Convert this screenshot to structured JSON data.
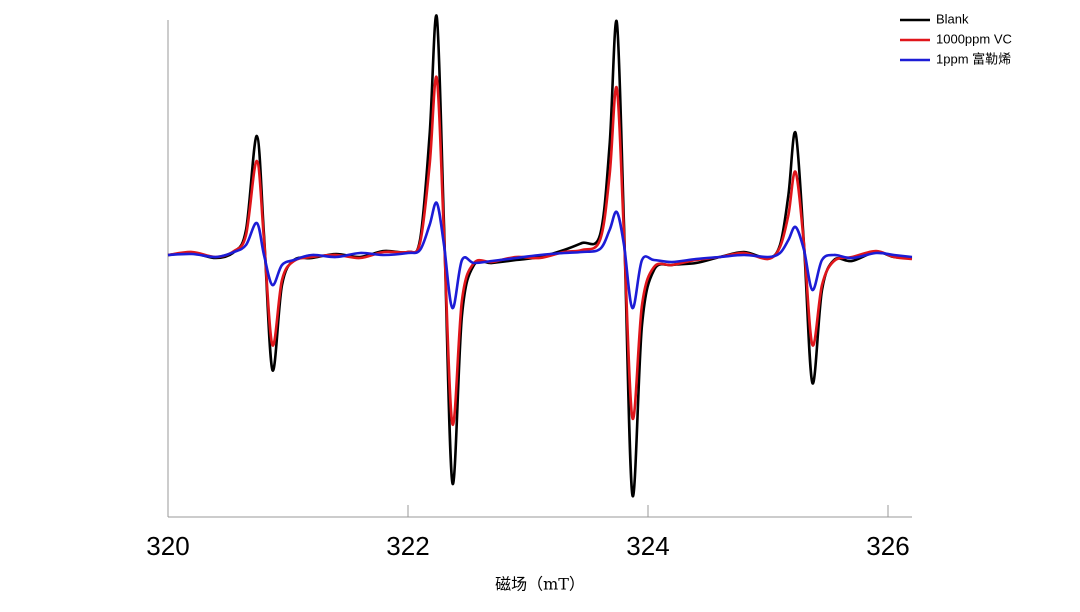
{
  "chart_data": {
    "type": "line",
    "xlabel": "磁场（mT）",
    "x": [
      320.0,
      320.2,
      320.4,
      320.55,
      320.65,
      320.74,
      320.8,
      320.87,
      320.95,
      321.05,
      321.2,
      321.4,
      321.6,
      321.8,
      322.0,
      322.1,
      322.18,
      322.24,
      322.3,
      322.37,
      322.45,
      322.55,
      322.7,
      322.9,
      323.1,
      323.3,
      323.45,
      323.6,
      323.68,
      323.74,
      323.8,
      323.87,
      323.95,
      324.05,
      324.2,
      324.4,
      324.6,
      324.8,
      325.0,
      325.1,
      325.17,
      325.23,
      325.3,
      325.37,
      325.45,
      325.55,
      325.7,
      325.9,
      326.05,
      326.2
    ],
    "series": [
      {
        "name": "Blank",
        "color": "#000000",
        "values": [
          0.0,
          0.02,
          -0.03,
          0.03,
          0.25,
          1.19,
          0.2,
          -1.15,
          -0.3,
          -0.05,
          -0.03,
          0.01,
          -0.02,
          0.04,
          0.03,
          0.15,
          1.2,
          2.38,
          0.3,
          -2.28,
          -0.6,
          -0.1,
          -0.08,
          -0.05,
          -0.02,
          0.05,
          0.12,
          0.2,
          1.1,
          2.33,
          0.3,
          -2.4,
          -0.7,
          -0.15,
          -0.1,
          -0.08,
          -0.02,
          0.03,
          -0.03,
          0.1,
          0.6,
          1.22,
          0.1,
          -1.28,
          -0.35,
          -0.05,
          -0.06,
          0.03,
          -0.02,
          -0.03
        ]
      },
      {
        "name": "1000ppm VC",
        "color": "#e0161b",
        "values": [
          0.0,
          0.03,
          -0.02,
          0.04,
          0.2,
          0.94,
          0.15,
          -0.9,
          -0.25,
          -0.06,
          -0.02,
          0.0,
          -0.03,
          0.03,
          0.03,
          0.12,
          0.9,
          1.77,
          0.2,
          -1.69,
          -0.45,
          -0.08,
          -0.07,
          -0.02,
          -0.03,
          0.03,
          0.05,
          0.15,
          0.8,
          1.67,
          0.2,
          -1.63,
          -0.5,
          -0.12,
          -0.1,
          -0.05,
          -0.02,
          0.02,
          -0.04,
          0.08,
          0.4,
          0.83,
          0.1,
          -0.9,
          -0.3,
          -0.06,
          -0.02,
          0.04,
          -0.02,
          -0.04
        ]
      },
      {
        "name": "1ppm 富勒烯",
        "color": "#1c1cd6",
        "values": [
          0.0,
          0.01,
          -0.02,
          0.03,
          0.1,
          0.32,
          0.0,
          -0.3,
          -0.1,
          -0.05,
          0.0,
          -0.02,
          0.02,
          0.0,
          0.02,
          0.05,
          0.3,
          0.52,
          0.1,
          -0.53,
          -0.05,
          -0.08,
          -0.06,
          -0.03,
          0.0,
          0.02,
          0.03,
          0.06,
          0.25,
          0.43,
          0.1,
          -0.53,
          -0.05,
          -0.05,
          -0.07,
          -0.04,
          -0.02,
          0.0,
          -0.02,
          0.02,
          0.15,
          0.28,
          0.05,
          -0.35,
          -0.05,
          0.0,
          -0.03,
          0.02,
          0.0,
          -0.02
        ]
      }
    ],
    "xlim": [
      320,
      326.2
    ],
    "xticks": [
      320,
      322,
      324,
      326
    ],
    "ylim": [
      -2.62,
      2.45
    ],
    "legend": "upper right"
  }
}
